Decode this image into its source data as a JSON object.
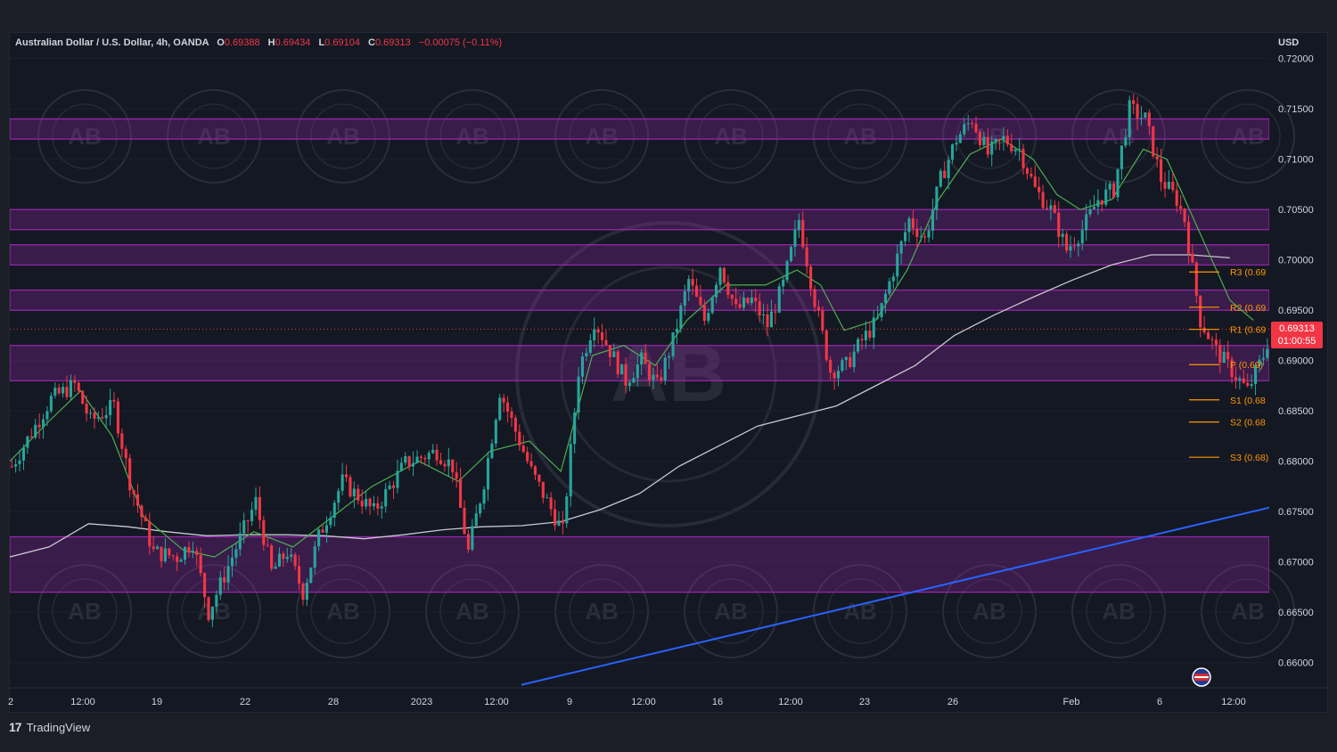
{
  "header": {
    "symbol": "Australian Dollar / U.S. Dollar, 4h, OANDA",
    "o_label": "O",
    "o_value": "0.69388",
    "h_label": "H",
    "h_value": "0.69434",
    "l_label": "L",
    "l_value": "0.69104",
    "c_label": "C",
    "c_value": "0.69313",
    "change": "−0.00075 (−0.11%)"
  },
  "currency": "USD",
  "last_price": {
    "value": "0.69313",
    "countdown": "01:00:55"
  },
  "footer": {
    "logo": "17",
    "brand": "TradingView"
  },
  "watermark": {
    "text": "AB"
  },
  "colors": {
    "up": "#26a69a",
    "down": "#f23645",
    "zone": "#9c27b0",
    "ema_fast": "#4caf50",
    "sma_slow": "#c8c8d0",
    "trendline": "#2962ff",
    "pivot": "#ff9800"
  },
  "chart_data": {
    "type": "candlestick",
    "y_axis": {
      "range": [
        0.6575,
        0.7205
      ],
      "ticks": [
        "0.72000",
        "0.71500",
        "0.71000",
        "0.70500",
        "0.70000",
        "0.69500",
        "0.69000",
        "0.68500",
        "0.68000",
        "0.67500",
        "0.67000",
        "0.66500",
        "0.66000"
      ]
    },
    "x_axis": {
      "range": [
        0,
        320
      ],
      "ticks": [
        "2",
        "12:00",
        "19",
        "22",
        "28",
        "2023",
        "12:00",
        "9",
        "12:00",
        "16",
        "12:00",
        "23",
        "26",
        "Feb",
        "6",
        "12:00"
      ]
    },
    "zones": [
      {
        "from": 0.712,
        "to": 0.714
      },
      {
        "from": 0.703,
        "to": 0.705
      },
      {
        "from": 0.6995,
        "to": 0.7015
      },
      {
        "from": 0.695,
        "to": 0.697
      },
      {
        "from": 0.688,
        "to": 0.6915
      },
      {
        "from": 0.667,
        "to": 0.6725
      }
    ],
    "pivots": [
      {
        "label": "R3 (0.69",
        "value": 0.6988
      },
      {
        "label": "R2 (0.69",
        "value": 0.6953
      },
      {
        "label": "R1 (0.69",
        "value": 0.6931
      },
      {
        "label": "P (0.69)",
        "value": 0.6896
      },
      {
        "label": "S1 (0.68",
        "value": 0.6861
      },
      {
        "label": "S2 (0.68",
        "value": 0.6839
      },
      {
        "label": "S3 (0.68)",
        "value": 0.6804
      }
    ],
    "trendline": [
      {
        "x": 130,
        "y": 0.6578
      },
      {
        "x": 320,
        "y": 0.6754
      }
    ],
    "anchors": [
      [
        0,
        0.6795
      ],
      [
        10,
        0.6862
      ],
      [
        16,
        0.6876
      ],
      [
        20,
        0.684
      ],
      [
        26,
        0.6855
      ],
      [
        30,
        0.678
      ],
      [
        36,
        0.671
      ],
      [
        42,
        0.6705
      ],
      [
        46,
        0.672
      ],
      [
        50,
        0.665
      ],
      [
        56,
        0.6705
      ],
      [
        62,
        0.676
      ],
      [
        66,
        0.669
      ],
      [
        70,
        0.671
      ],
      [
        74,
        0.667
      ],
      [
        78,
        0.6725
      ],
      [
        84,
        0.678
      ],
      [
        92,
        0.675
      ],
      [
        100,
        0.6798
      ],
      [
        108,
        0.681
      ],
      [
        112,
        0.6795
      ],
      [
        116,
        0.671
      ],
      [
        120,
        0.678
      ],
      [
        124,
        0.687
      ],
      [
        128,
        0.683
      ],
      [
        132,
        0.679
      ],
      [
        136,
        0.676
      ],
      [
        140,
        0.673
      ],
      [
        144,
        0.689
      ],
      [
        148,
        0.694
      ],
      [
        152,
        0.691
      ],
      [
        156,
        0.688
      ],
      [
        160,
        0.69
      ],
      [
        164,
        0.6875
      ],
      [
        168,
        0.692
      ],
      [
        172,
        0.698
      ],
      [
        176,
        0.694
      ],
      [
        180,
        0.6995
      ],
      [
        184,
        0.695
      ],
      [
        188,
        0.696
      ],
      [
        192,
        0.6935
      ],
      [
        196,
        0.6975
      ],
      [
        200,
        0.704
      ],
      [
        204,
        0.696
      ],
      [
        208,
        0.689
      ],
      [
        212,
        0.6895
      ],
      [
        216,
        0.692
      ],
      [
        220,
        0.694
      ],
      [
        224,
        0.699
      ],
      [
        228,
        0.704
      ],
      [
        232,
        0.702
      ],
      [
        236,
        0.708
      ],
      [
        240,
        0.712
      ],
      [
        244,
        0.714
      ],
      [
        248,
        0.7105
      ],
      [
        252,
        0.712
      ],
      [
        256,
        0.711
      ],
      [
        260,
        0.707
      ],
      [
        264,
        0.705
      ],
      [
        268,
        0.701
      ],
      [
        272,
        0.703
      ],
      [
        276,
        0.706
      ],
      [
        280,
        0.707
      ],
      [
        284,
        0.715
      ],
      [
        288,
        0.714
      ],
      [
        292,
        0.708
      ],
      [
        296,
        0.706
      ],
      [
        298,
        0.704
      ],
      [
        302,
        0.694
      ],
      [
        306,
        0.691
      ],
      [
        310,
        0.689
      ],
      [
        314,
        0.687
      ],
      [
        318,
        0.6905
      ],
      [
        320,
        0.6931
      ]
    ],
    "ema_fast": [
      [
        0,
        0.68
      ],
      [
        10,
        0.684
      ],
      [
        18,
        0.687
      ],
      [
        26,
        0.6825
      ],
      [
        34,
        0.6745
      ],
      [
        44,
        0.6712
      ],
      [
        52,
        0.6705
      ],
      [
        62,
        0.673
      ],
      [
        72,
        0.6715
      ],
      [
        82,
        0.6745
      ],
      [
        92,
        0.6775
      ],
      [
        104,
        0.68
      ],
      [
        114,
        0.678
      ],
      [
        122,
        0.681
      ],
      [
        132,
        0.682
      ],
      [
        140,
        0.679
      ],
      [
        148,
        0.6905
      ],
      [
        156,
        0.6915
      ],
      [
        164,
        0.6895
      ],
      [
        172,
        0.694
      ],
      [
        182,
        0.6975
      ],
      [
        192,
        0.6975
      ],
      [
        200,
        0.699
      ],
      [
        206,
        0.6975
      ],
      [
        212,
        0.693
      ],
      [
        220,
        0.694
      ],
      [
        228,
        0.699
      ],
      [
        236,
        0.706
      ],
      [
        244,
        0.7105
      ],
      [
        252,
        0.712
      ],
      [
        260,
        0.71
      ],
      [
        266,
        0.7065
      ],
      [
        272,
        0.705
      ],
      [
        280,
        0.706
      ],
      [
        288,
        0.711
      ],
      [
        294,
        0.71
      ],
      [
        302,
        0.703
      ],
      [
        310,
        0.696
      ],
      [
        316,
        0.694
      ]
    ],
    "sma_slow": [
      [
        0,
        0.6705
      ],
      [
        10,
        0.6715
      ],
      [
        20,
        0.6738
      ],
      [
        30,
        0.6735
      ],
      [
        40,
        0.673
      ],
      [
        50,
        0.6726
      ],
      [
        60,
        0.6727
      ],
      [
        70,
        0.6727
      ],
      [
        80,
        0.6726
      ],
      [
        90,
        0.6723
      ],
      [
        100,
        0.6727
      ],
      [
        110,
        0.6732
      ],
      [
        120,
        0.6735
      ],
      [
        130,
        0.6736
      ],
      [
        140,
        0.674
      ],
      [
        150,
        0.6752
      ],
      [
        160,
        0.6768
      ],
      [
        170,
        0.6795
      ],
      [
        180,
        0.6815
      ],
      [
        190,
        0.6835
      ],
      [
        200,
        0.6845
      ],
      [
        210,
        0.6855
      ],
      [
        220,
        0.6875
      ],
      [
        230,
        0.6895
      ],
      [
        240,
        0.6925
      ],
      [
        250,
        0.6945
      ],
      [
        260,
        0.6963
      ],
      [
        270,
        0.698
      ],
      [
        280,
        0.6995
      ],
      [
        290,
        0.7005
      ],
      [
        300,
        0.7005
      ],
      [
        310,
        0.7002
      ]
    ]
  }
}
